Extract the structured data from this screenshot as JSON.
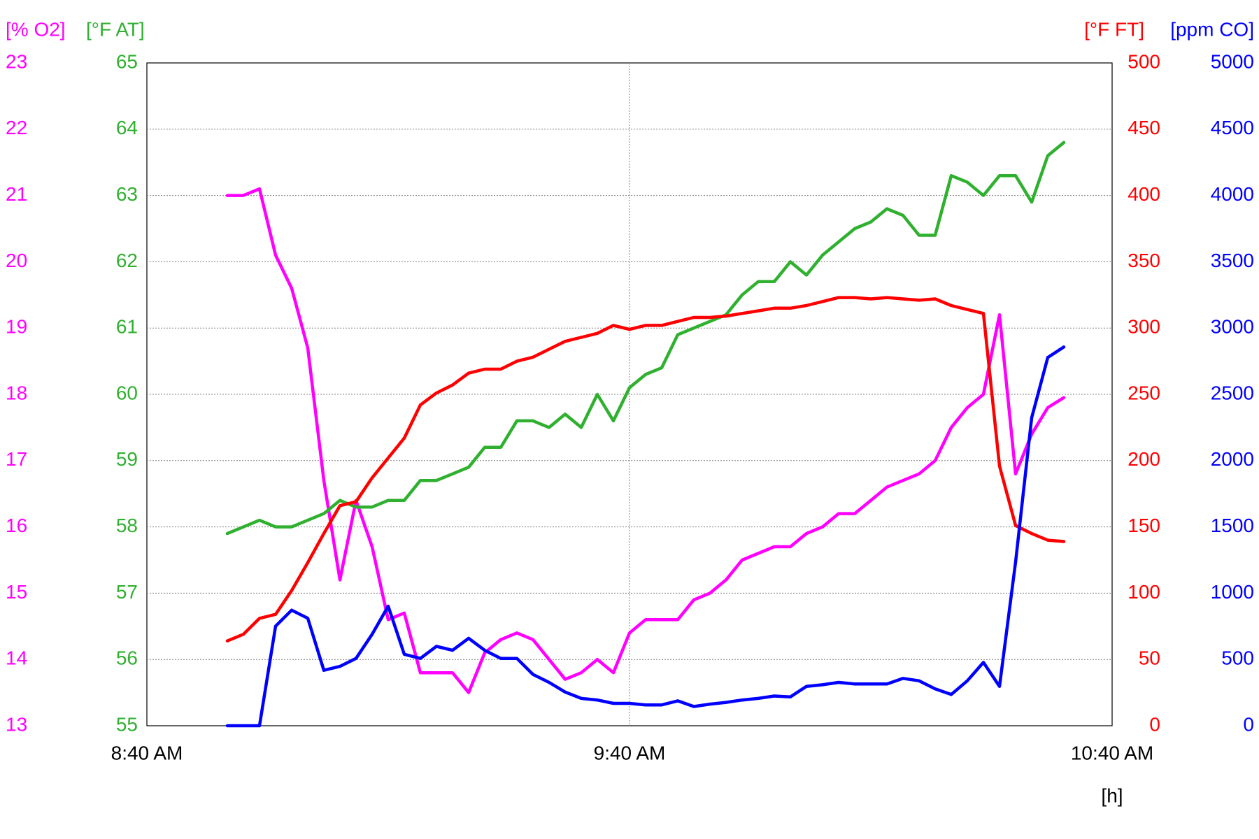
{
  "chart_data": {
    "type": "line",
    "x_label": "[h]",
    "xlim": [
      520,
      640
    ],
    "xticks": [
      {
        "value": 520,
        "label": "8:40 AM"
      },
      {
        "value": 580,
        "label": "9:40 AM"
      },
      {
        "value": 640,
        "label": "10:40 AM"
      }
    ],
    "grid": true,
    "y_axes": [
      {
        "label": "[% O2]",
        "color": "#ff00ff",
        "side": "left",
        "lim": [
          13,
          23
        ],
        "ticks": [
          13,
          14,
          15,
          16,
          17,
          18,
          19,
          20,
          21,
          22,
          23
        ]
      },
      {
        "label": "[°F AT]",
        "color": "#2fb02f",
        "side": "left",
        "lim": [
          55,
          65
        ],
        "ticks": [
          55,
          56,
          57,
          58,
          59,
          60,
          61,
          62,
          63,
          64,
          65
        ]
      },
      {
        "label": "[°F FT]",
        "color": "#ff0000",
        "side": "right",
        "lim": [
          0,
          500
        ],
        "ticks": [
          0,
          50,
          100,
          150,
          200,
          250,
          300,
          350,
          400,
          450,
          500
        ]
      },
      {
        "label": "[ppm CO]",
        "color": "#0000ff",
        "side": "right",
        "lim": [
          0,
          5000
        ],
        "ticks": [
          0,
          500,
          1000,
          1500,
          2000,
          2500,
          3000,
          3500,
          4000,
          4500,
          5000
        ]
      }
    ],
    "x": [
      530,
      532,
      534,
      536,
      538,
      540,
      542,
      544,
      546,
      548,
      550,
      552,
      554,
      556,
      558,
      560,
      562,
      564,
      566,
      568,
      570,
      572,
      574,
      576,
      578,
      580,
      582,
      584,
      586,
      588,
      590,
      592,
      594,
      596,
      598,
      600,
      602,
      604,
      606,
      608,
      610,
      612,
      614,
      616,
      618,
      620,
      622,
      624,
      626,
      628,
      630,
      632,
      634
    ],
    "series": [
      {
        "name": "[% O2]",
        "axis": 0,
        "color": "#ff00ff",
        "values": [
          21.0,
          21.0,
          21.1,
          20.1,
          19.6,
          18.7,
          16.7,
          15.2,
          16.4,
          15.7,
          14.6,
          14.7,
          13.8,
          13.8,
          13.8,
          13.5,
          14.1,
          14.3,
          14.4,
          14.3,
          14.0,
          13.7,
          13.8,
          14.0,
          13.8,
          14.4,
          14.6,
          14.6,
          14.6,
          14.9,
          15.0,
          15.2,
          15.5,
          15.6,
          15.7,
          15.7,
          15.9,
          16.0,
          16.2,
          16.2,
          16.4,
          16.6,
          16.7,
          16.8,
          17.0,
          17.5,
          17.8,
          18.0,
          19.2,
          16.8,
          17.4,
          17.8,
          17.95
        ]
      },
      {
        "name": "[°F AT]",
        "axis": 1,
        "color": "#2fb02f",
        "values": [
          57.9,
          58.0,
          58.1,
          58.0,
          58.0,
          58.1,
          58.2,
          58.4,
          58.3,
          58.3,
          58.4,
          58.4,
          58.7,
          58.7,
          58.8,
          58.9,
          59.2,
          59.2,
          59.6,
          59.6,
          59.5,
          59.7,
          59.5,
          60.0,
          59.6,
          60.1,
          60.3,
          60.4,
          60.9,
          61.0,
          61.1,
          61.2,
          61.5,
          61.7,
          61.7,
          62.0,
          61.8,
          62.1,
          62.3,
          62.5,
          62.6,
          62.8,
          62.7,
          62.4,
          62.4,
          63.3,
          63.2,
          63.0,
          63.3,
          63.3,
          62.9,
          63.6,
          63.8
        ]
      },
      {
        "name": "[°F FT]",
        "axis": 2,
        "color": "#ff0000",
        "values": [
          64,
          69,
          81,
          84,
          102,
          123,
          145,
          166,
          169,
          187,
          202,
          217,
          242,
          251,
          257,
          266,
          269,
          269,
          275,
          278,
          284,
          290,
          293,
          296,
          302,
          299,
          302,
          302,
          305,
          308,
          308,
          309,
          311,
          313,
          315,
          315,
          317,
          320,
          323,
          323,
          322,
          323,
          322,
          321,
          322,
          317,
          314,
          311,
          196,
          151,
          145,
          140,
          139
        ]
      },
      {
        "name": "[ppm CO]",
        "axis": 3,
        "color": "#0000ff",
        "values": [
          0,
          0,
          0,
          751,
          872,
          811,
          418,
          448,
          508,
          690,
          902,
          539,
          508,
          599,
          569,
          660,
          569,
          508,
          508,
          387,
          327,
          254,
          206,
          194,
          169,
          169,
          157,
          157,
          188,
          145,
          163,
          176,
          194,
          206,
          224,
          218,
          297,
          309,
          327,
          315,
          315,
          315,
          357,
          339,
          278,
          236,
          339,
          478,
          297,
          1235,
          2324,
          2778,
          2857
        ]
      }
    ]
  }
}
